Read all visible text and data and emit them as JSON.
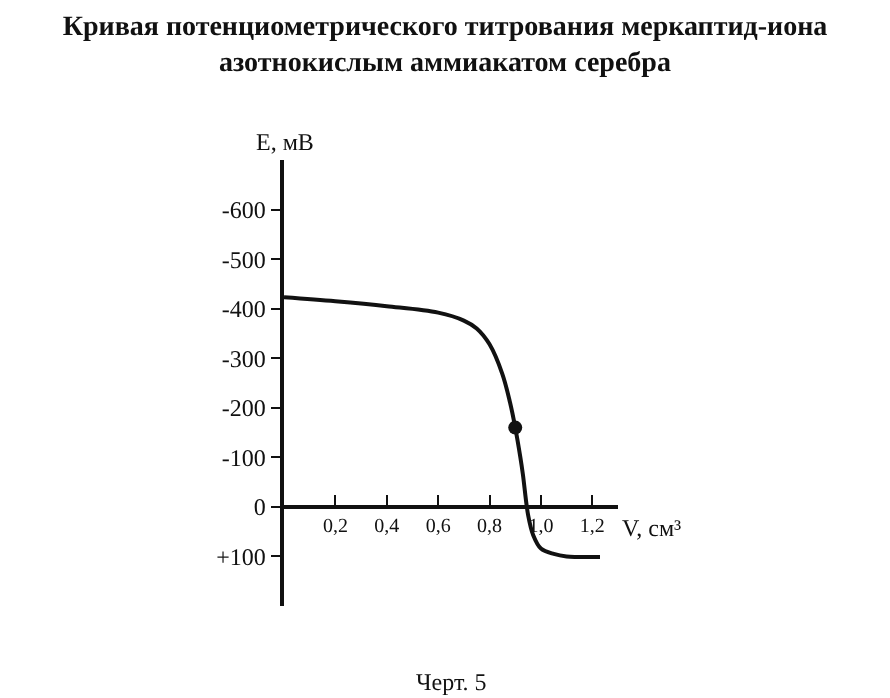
{
  "chart_data": {
    "type": "line",
    "title": "Кривая потенциометрического титрования меркаптид-иона\nазотнокислым аммиакатом серебра",
    "xlabel": "V, см³",
    "ylabel": "E, мВ",
    "annotations": [
      "Черт. 5"
    ],
    "series": [
      {
        "color": "#111111",
        "x": [
          0,
          0.2,
          0.4,
          0.6,
          0.7,
          0.75,
          0.8,
          0.85,
          0.88,
          0.9,
          0.92,
          0.93,
          0.95,
          0.97,
          1.0,
          1.05,
          1.1,
          1.23
        ],
        "values": [
          -423,
          -415,
          -405,
          -392,
          -376,
          -360,
          -328,
          -268,
          -210,
          -160,
          -100,
          -65,
          16,
          57,
          84,
          95,
          100,
          101
        ]
      },
      {
        "type": "scatter",
        "marker": "circle",
        "color": "#111111",
        "x": [
          0.9
        ],
        "values": [
          -160
        ]
      }
    ],
    "xlim": [
      0,
      1.3
    ],
    "xticks": [
      {
        "value": 0.2,
        "label": "0,2"
      },
      {
        "value": 0.4,
        "label": "0,4"
      },
      {
        "value": 0.6,
        "label": "0,6"
      },
      {
        "value": 0.8,
        "label": "0,8"
      },
      {
        "value": 1.0,
        "label": "1,0"
      },
      {
        "value": 1.2,
        "label": "1,2"
      }
    ],
    "ylim": [
      200,
      -700
    ],
    "yticks": [
      {
        "value": -600,
        "label": "-600"
      },
      {
        "value": -500,
        "label": "-500"
      },
      {
        "value": -400,
        "label": "-400"
      },
      {
        "value": -300,
        "label": "-300"
      },
      {
        "value": -200,
        "label": "-200"
      },
      {
        "value": -100,
        "label": "-100"
      },
      0,
      {
        "value": 100,
        "label": "+100"
      }
    ]
  }
}
